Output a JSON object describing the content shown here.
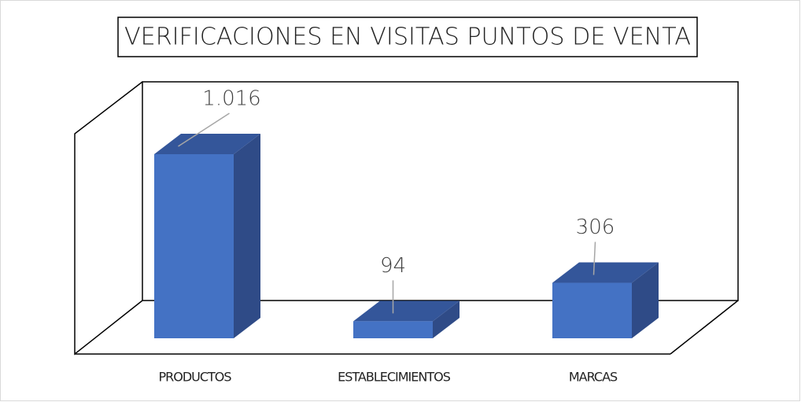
{
  "chart_data": {
    "type": "bar3d",
    "title": "VERIFICACIONES EN VISITAS PUNTOS DE VENTA",
    "categories": [
      "PRODUCTOS",
      "ESTABLECIMIENTOS",
      "MARCAS"
    ],
    "values": [
      1016,
      94,
      306
    ],
    "value_labels": [
      "1.016",
      "94",
      "306"
    ],
    "color": "#4472c4"
  }
}
